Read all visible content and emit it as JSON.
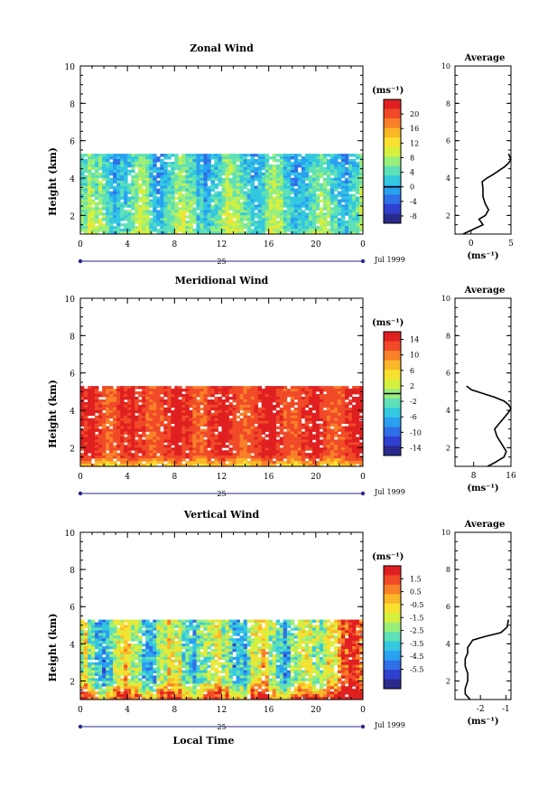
{
  "colors": {
    "scale": [
      "#2a2a8c",
      "#2f3fd0",
      "#2f6fe8",
      "#2aa0f0",
      "#34c8e0",
      "#5ee0b8",
      "#9aee7a",
      "#d6f040",
      "#f8e030",
      "#fab828",
      "#f88028",
      "#f04a28",
      "#e02020"
    ]
  },
  "chart_data": [
    {
      "type": "heatmap",
      "title": "Zonal Wind",
      "ylabel": "Height (km)",
      "ylim": [
        1,
        10
      ],
      "yticks": [
        2,
        4,
        6,
        8,
        10
      ],
      "xlim": [
        0,
        24
      ],
      "xticks": [
        "0",
        "4",
        "8",
        "12",
        "16",
        "20",
        "0"
      ],
      "day_label": "25",
      "date_label": "Jul 1999",
      "data_top_km": 5.3,
      "colorbar": {
        "unit": "(ms⁻¹)",
        "min": -10,
        "max": 24,
        "ticks": [
          "20",
          "16",
          "12",
          "8",
          "4",
          "0",
          "-4",
          "-8"
        ],
        "tick_values": [
          20,
          16,
          12,
          8,
          4,
          0,
          -4,
          -8
        ],
        "line_at": 0
      },
      "field_mean": 4,
      "field_spread": 6,
      "average": {
        "title": "Average",
        "xlabel": "(ms⁻¹)",
        "xlim": [
          -2,
          5
        ],
        "xticks": [
          "0",
          "5"
        ],
        "xtick_values": [
          0,
          5
        ],
        "yticks": [
          "2",
          "4",
          "6",
          "8",
          "10"
        ],
        "x": [
          -1.0,
          0.0,
          1.5,
          1.0,
          1.8,
          2.2,
          1.8,
          1.5,
          1.5,
          1.4,
          2.0,
          2.8,
          3.5,
          4.2,
          4.7,
          5.0,
          4.7
        ],
        "y": [
          1.0,
          1.2,
          1.5,
          1.8,
          2.0,
          2.3,
          2.6,
          3.0,
          3.4,
          3.8,
          4.0,
          4.2,
          4.4,
          4.6,
          4.8,
          5.0,
          5.3
        ]
      }
    },
    {
      "type": "heatmap",
      "title": "Meridional Wind",
      "ylabel": "Height (km)",
      "ylim": [
        1,
        10
      ],
      "yticks": [
        2,
        4,
        6,
        8,
        10
      ],
      "xlim": [
        0,
        24
      ],
      "xticks": [
        "0",
        "4",
        "8",
        "12",
        "16",
        "20",
        "0"
      ],
      "day_label": "25",
      "date_label": "Jul 1999",
      "data_top_km": 5.3,
      "colorbar": {
        "unit": "(ms⁻¹)",
        "min": -16,
        "max": 16,
        "ticks": [
          "14",
          "10",
          "6",
          "2",
          "-2",
          "-6",
          "-10",
          "-14"
        ],
        "tick_values": [
          14,
          10,
          6,
          2,
          -2,
          -6,
          -10,
          -14
        ],
        "line_at": 0
      },
      "field_mean": 13,
      "field_spread": 3,
      "average": {
        "title": "Average",
        "xlabel": "(ms⁻¹)",
        "xlim": [
          4,
          16
        ],
        "xticks": [
          "8",
          "16"
        ],
        "xtick_values": [
          8,
          16
        ],
        "yticks": [
          "2",
          "4",
          "6",
          "8",
          "10"
        ],
        "x": [
          11.0,
          12.5,
          14.5,
          15.0,
          14.0,
          13.0,
          12.5,
          13.5,
          14.5,
          15.5,
          16.0,
          15.5,
          14.5,
          12.5,
          10.0,
          7.5,
          6.5
        ],
        "y": [
          1.0,
          1.2,
          1.5,
          1.8,
          2.2,
          2.6,
          3.0,
          3.3,
          3.6,
          3.9,
          4.1,
          4.3,
          4.5,
          4.7,
          4.9,
          5.1,
          5.3
        ]
      }
    },
    {
      "type": "heatmap",
      "title": "Vertical Wind",
      "ylabel": "Height (km)",
      "ylim": [
        1,
        10
      ],
      "yticks": [
        2,
        4,
        6,
        8,
        10
      ],
      "xlim": [
        0,
        24
      ],
      "xticks": [
        "0",
        "4",
        "8",
        "12",
        "16",
        "20",
        "0"
      ],
      "day_label": "25",
      "date_label": "Jul 1999",
      "xlabel": "Local Time",
      "data_top_km": 5.3,
      "colorbar": {
        "unit": "(ms⁻¹)",
        "min": -7,
        "max": 2.5,
        "ticks": [
          "1.5",
          "0.5",
          "-0.5",
          "-1.5",
          "-2.5",
          "-3.5",
          "-4.5",
          "-5.5"
        ],
        "tick_values": [
          1.5,
          0.5,
          -0.5,
          -1.5,
          -2.5,
          -3.5,
          -4.5,
          -5.5
        ]
      },
      "field_mean": -2.5,
      "field_spread": 3,
      "average": {
        "title": "Average",
        "xlabel": "(ms⁻¹)",
        "xlim": [
          -3,
          -0.8
        ],
        "xticks": [
          "-2",
          "-1"
        ],
        "xtick_values": [
          -2,
          -1
        ],
        "yticks": [
          "2",
          "4",
          "6",
          "8",
          "10"
        ],
        "x": [
          -2.4,
          -2.6,
          -2.6,
          -2.5,
          -2.5,
          -2.6,
          -2.6,
          -2.5,
          -2.5,
          -2.4,
          -2.3,
          -1.8,
          -1.2,
          -0.95,
          -0.9
        ],
        "y": [
          1.0,
          1.3,
          1.6,
          2.0,
          2.4,
          2.8,
          3.2,
          3.5,
          3.8,
          4.0,
          4.2,
          4.4,
          4.6,
          4.9,
          5.3
        ]
      }
    }
  ]
}
